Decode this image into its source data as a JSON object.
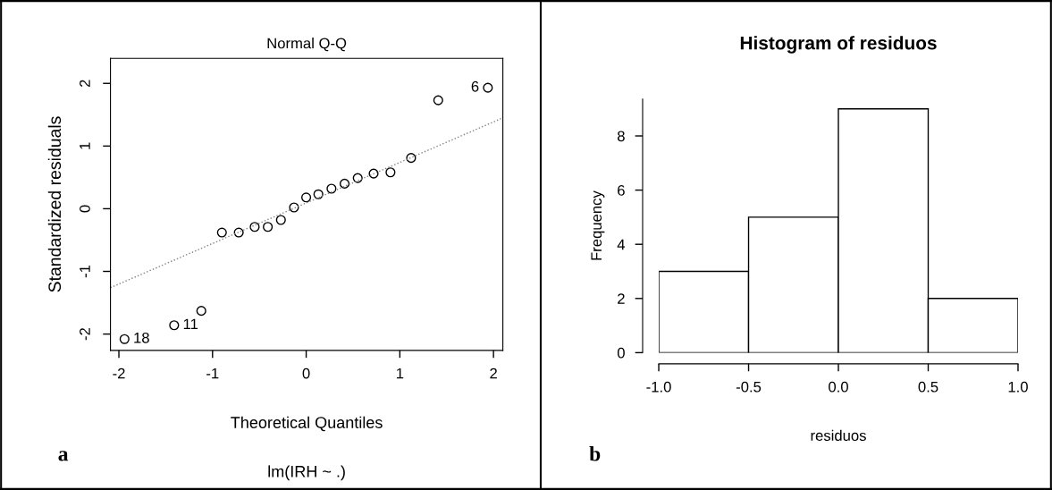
{
  "chart_data": [
    {
      "type": "scatter",
      "title": "Normal Q-Q",
      "xlabel": "Theoretical Quantiles",
      "ylabel": "Standardized residuals",
      "xlim": [
        -2.09,
        2.1
      ],
      "ylim": [
        -2.26,
        2.4
      ],
      "xticks": [
        -2,
        -1,
        0,
        1,
        2
      ],
      "yticks": [
        -2,
        -1,
        0,
        1,
        2
      ],
      "series": [
        {
          "type": "scatter",
          "color": "#000000",
          "marker": "circle",
          "x": [
            -1.94,
            -1.41,
            -1.12,
            -0.9,
            -0.72,
            -0.55,
            -0.41,
            -0.27,
            -0.13,
            0,
            0.13,
            0.27,
            0.41,
            0.55,
            0.72,
            0.9,
            1.12,
            1.41,
            1.94
          ],
          "values": [
            -2.08,
            -1.86,
            -1.63,
            -0.38,
            -0.38,
            -0.29,
            -0.29,
            -0.18,
            0.02,
            0.18,
            0.23,
            0.32,
            0.4,
            0.49,
            0.56,
            0.58,
            0.81,
            1.73,
            1.93
          ]
        },
        {
          "type": "line",
          "color": "#808080",
          "line_style": "dotted",
          "x": [
            -2.09,
            2.1
          ],
          "values": [
            -1.26,
            1.45
          ]
        }
      ],
      "annotations": [
        {
          "text": "18",
          "x": -1.94,
          "y": -2.08
        },
        {
          "text": "11",
          "x": -1.41,
          "y": -1.86
        },
        {
          "text": "6",
          "x": 1.94,
          "y": 1.93
        },
        "lm(IRH ~ .)",
        "a"
      ]
    },
    {
      "type": "histogram",
      "title": "Histogram of residuos",
      "xlabel": "residuos",
      "ylabel": "Frequency",
      "bins": [
        -1,
        -0.5,
        0,
        0.5,
        1
      ],
      "values": [
        3,
        5,
        9,
        2
      ],
      "color": "#ffffff",
      "xlim": [
        -1,
        1
      ],
      "ylim": [
        0,
        9.36
      ],
      "xticks": [
        {
          "value": -1,
          "label": "-1.0"
        },
        {
          "value": -0.5,
          "label": "-0.5"
        },
        {
          "value": 0,
          "label": "0.0"
        },
        {
          "value": 0.5,
          "label": "0.5"
        },
        {
          "value": 1,
          "label": "1.0"
        }
      ],
      "yticks": [
        0,
        2,
        4,
        6,
        8
      ],
      "annotations": [
        "b"
      ]
    }
  ]
}
